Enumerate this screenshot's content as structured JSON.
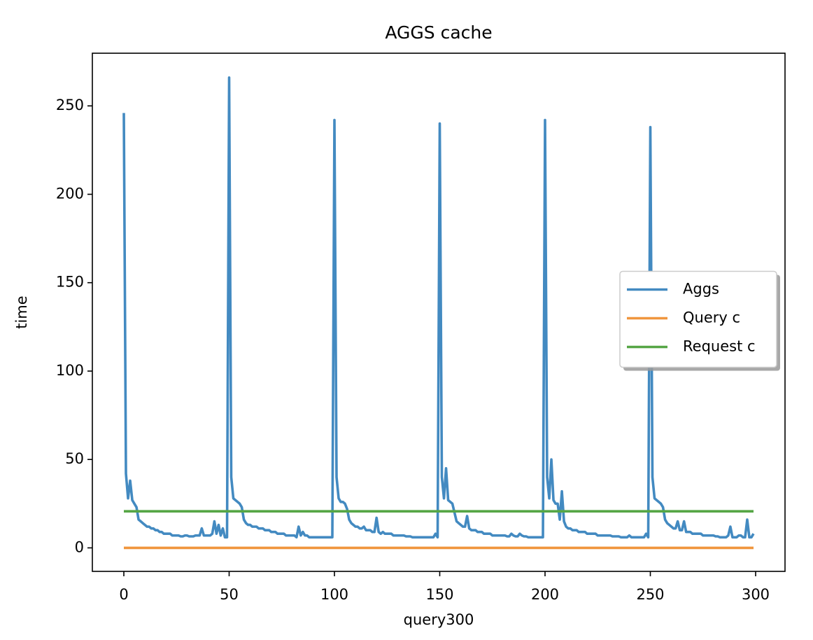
{
  "chart_data": {
    "type": "line",
    "title": "AGGS cache",
    "xlabel": "query300",
    "ylabel": "time",
    "x": [
      0,
      1,
      2,
      3,
      4,
      5,
      6,
      7,
      8,
      9,
      10,
      11,
      12,
      13,
      14,
      15,
      16,
      17,
      18,
      19,
      20,
      21,
      22,
      23,
      24,
      25,
      26,
      27,
      28,
      29,
      30,
      31,
      32,
      33,
      34,
      35,
      36,
      37,
      38,
      39,
      40,
      41,
      42,
      43,
      44,
      45,
      46,
      47,
      48,
      49,
      50,
      51,
      52,
      53,
      54,
      55,
      56,
      57,
      58,
      59,
      60,
      61,
      62,
      63,
      64,
      65,
      66,
      67,
      68,
      69,
      70,
      71,
      72,
      73,
      74,
      75,
      76,
      77,
      78,
      79,
      80,
      81,
      82,
      83,
      84,
      85,
      86,
      87,
      88,
      89,
      90,
      91,
      92,
      93,
      94,
      95,
      96,
      97,
      98,
      99,
      100,
      101,
      102,
      103,
      104,
      105,
      106,
      107,
      108,
      109,
      110,
      111,
      112,
      113,
      114,
      115,
      116,
      117,
      118,
      119,
      120,
      121,
      122,
      123,
      124,
      125,
      126,
      127,
      128,
      129,
      130,
      131,
      132,
      133,
      134,
      135,
      136,
      137,
      138,
      139,
      140,
      141,
      142,
      143,
      144,
      145,
      146,
      147,
      148,
      149,
      150,
      151,
      152,
      153,
      154,
      155,
      156,
      157,
      158,
      159,
      160,
      161,
      162,
      163,
      164,
      165,
      166,
      167,
      168,
      169,
      170,
      171,
      172,
      173,
      174,
      175,
      176,
      177,
      178,
      179,
      180,
      181,
      182,
      183,
      184,
      185,
      186,
      187,
      188,
      189,
      190,
      191,
      192,
      193,
      194,
      195,
      196,
      197,
      198,
      199,
      200,
      201,
      202,
      203,
      204,
      205,
      206,
      207,
      208,
      209,
      210,
      211,
      212,
      213,
      214,
      215,
      216,
      217,
      218,
      219,
      220,
      221,
      222,
      223,
      224,
      225,
      226,
      227,
      228,
      229,
      230,
      231,
      232,
      233,
      234,
      235,
      236,
      237,
      238,
      239,
      240,
      241,
      242,
      243,
      244,
      245,
      246,
      247,
      248,
      249,
      250,
      251,
      252,
      253,
      254,
      255,
      256,
      257,
      258,
      259,
      260,
      261,
      262,
      263,
      264,
      265,
      266,
      267,
      268,
      269,
      270,
      271,
      272,
      273,
      274,
      275,
      276,
      277,
      278,
      279,
      280,
      281,
      282,
      283,
      284,
      285,
      286,
      287,
      288,
      289,
      290,
      291,
      292,
      293,
      294,
      295,
      296,
      297,
      298,
      299
    ],
    "series": [
      {
        "name": "Aggs",
        "color": "#438ac1",
        "values": [
          246,
          42,
          28,
          38,
          27,
          25,
          23,
          16,
          15,
          14,
          13,
          12,
          12,
          11,
          11,
          10,
          10,
          9,
          9,
          8,
          8,
          8,
          8,
          7,
          7,
          7,
          7,
          6.5,
          6.5,
          7,
          7,
          6.5,
          6.5,
          6.5,
          7,
          7,
          7,
          11,
          7,
          7,
          7,
          7,
          8,
          15,
          8,
          13,
          7,
          11,
          6,
          6,
          266,
          40,
          28,
          27,
          26,
          25,
          23,
          16,
          14,
          13,
          13,
          12,
          12,
          12,
          11,
          11,
          11,
          10,
          10,
          10,
          9,
          9,
          9,
          8,
          8,
          8,
          8,
          7,
          7,
          7,
          7,
          7,
          6,
          12,
          7,
          9,
          7,
          7,
          6,
          6,
          6,
          6,
          6,
          6,
          6,
          6,
          6,
          6,
          6,
          6,
          242,
          40,
          28,
          26,
          26,
          25,
          22,
          16,
          14,
          13,
          12,
          12,
          11,
          11,
          12,
          10,
          10,
          10,
          9,
          9,
          17,
          9,
          8,
          9,
          8,
          8,
          8,
          8,
          7,
          7,
          7,
          7,
          7,
          7,
          6.5,
          6.5,
          6.5,
          6,
          6,
          6,
          6,
          6,
          6,
          6,
          6,
          6,
          6,
          6,
          8,
          6,
          240,
          40,
          28,
          45,
          27,
          26,
          25,
          20,
          15,
          14,
          13,
          12,
          12,
          18,
          11,
          10,
          10,
          10,
          9,
          9,
          9,
          8,
          8,
          8,
          8,
          7,
          7,
          7,
          7,
          7,
          7,
          7,
          6.5,
          6.5,
          8,
          7,
          6.5,
          6.5,
          8,
          7,
          6.5,
          6.5,
          6,
          6,
          6,
          6,
          6,
          6,
          6,
          6,
          242,
          40,
          28,
          50,
          27,
          25,
          25,
          16,
          32,
          15,
          12,
          11,
          11,
          10,
          10,
          10,
          9,
          9,
          9,
          9,
          8,
          8,
          8,
          8,
          8,
          7,
          7,
          7,
          7,
          7,
          7,
          7,
          6.5,
          6.5,
          6.5,
          6.5,
          6,
          6,
          6,
          6,
          7,
          6,
          6,
          6,
          6,
          6,
          6,
          6,
          8,
          6,
          238,
          40,
          28,
          27,
          26,
          25,
          23,
          16,
          14,
          13,
          12,
          11,
          11,
          15,
          10,
          10,
          15,
          9,
          9,
          9,
          8,
          8,
          8,
          8,
          8,
          7,
          7,
          7,
          7,
          7,
          7,
          6.5,
          6.5,
          6,
          6,
          6,
          6,
          7,
          12,
          6,
          6,
          6,
          7,
          7,
          6,
          6,
          16,
          6,
          6,
          8
        ]
      },
      {
        "name": "Query c",
        "color": "#f0963e",
        "values": [
          0,
          0,
          0,
          0,
          0,
          0,
          0,
          0,
          0,
          0,
          0,
          0,
          0,
          0,
          0,
          0,
          0,
          0,
          0,
          0,
          0,
          0,
          0,
          0,
          0,
          0,
          0,
          0,
          0,
          0,
          0,
          0,
          0,
          0,
          0,
          0,
          0,
          0,
          0,
          0,
          0,
          0,
          0,
          0,
          0,
          0,
          0,
          0,
          0,
          0,
          0,
          0,
          0,
          0,
          0,
          0,
          0,
          0,
          0,
          0,
          0,
          0,
          0,
          0,
          0,
          0,
          0,
          0,
          0,
          0,
          0,
          0,
          0,
          0,
          0,
          0,
          0,
          0,
          0,
          0,
          0,
          0,
          0,
          0,
          0,
          0,
          0,
          0,
          0,
          0,
          0,
          0,
          0,
          0,
          0,
          0,
          0,
          0,
          0,
          0,
          0,
          0,
          0,
          0,
          0,
          0,
          0,
          0,
          0,
          0,
          0,
          0,
          0,
          0,
          0,
          0,
          0,
          0,
          0,
          0,
          0,
          0,
          0,
          0,
          0,
          0,
          0,
          0,
          0,
          0,
          0,
          0,
          0,
          0,
          0,
          0,
          0,
          0,
          0,
          0,
          0,
          0,
          0,
          0,
          0,
          0,
          0,
          0,
          0,
          0,
          0,
          0,
          0,
          0,
          0,
          0,
          0,
          0,
          0,
          0,
          0,
          0,
          0,
          0,
          0,
          0,
          0,
          0,
          0,
          0,
          0,
          0,
          0,
          0,
          0,
          0,
          0,
          0,
          0,
          0,
          0,
          0,
          0,
          0,
          0,
          0,
          0,
          0,
          0,
          0,
          0,
          0,
          0,
          0,
          0,
          0,
          0,
          0,
          0,
          0,
          0,
          0,
          0,
          0,
          0,
          0,
          0,
          0,
          0,
          0,
          0,
          0,
          0,
          0,
          0,
          0,
          0,
          0,
          0,
          0,
          0,
          0,
          0,
          0,
          0,
          0,
          0,
          0,
          0,
          0,
          0,
          0,
          0,
          0,
          0,
          0,
          0,
          0,
          0,
          0,
          0,
          0,
          0,
          0,
          0,
          0,
          0,
          0,
          0,
          0,
          0,
          0,
          0,
          0,
          0,
          0,
          0,
          0,
          0,
          0,
          0,
          0,
          0,
          0,
          0,
          0,
          0,
          0,
          0,
          0,
          0,
          0,
          0,
          0,
          0,
          0,
          0,
          0,
          0,
          0,
          0,
          0,
          0,
          0,
          0,
          0,
          0,
          0,
          0,
          0,
          0,
          0,
          0,
          0,
          0,
          0,
          0,
          0,
          0,
          0
        ]
      },
      {
        "name": "Request c",
        "color": "#56a646",
        "values": [
          20.7,
          20.7,
          20.7,
          20.7,
          20.7,
          20.7,
          20.7,
          20.7,
          20.7,
          20.7,
          20.7,
          20.7,
          20.7,
          20.7,
          20.7,
          20.7,
          20.7,
          20.7,
          20.7,
          20.7,
          20.7,
          20.7,
          20.7,
          20.7,
          20.7,
          20.7,
          20.7,
          20.7,
          20.7,
          20.7,
          20.7,
          20.7,
          20.7,
          20.7,
          20.7,
          20.7,
          20.7,
          20.7,
          20.7,
          20.7,
          20.7,
          20.7,
          20.7,
          20.7,
          20.7,
          20.7,
          20.7,
          20.7,
          20.7,
          20.7,
          20.7,
          20.7,
          20.7,
          20.7,
          20.7,
          20.7,
          20.7,
          20.7,
          20.7,
          20.7,
          20.7,
          20.7,
          20.7,
          20.7,
          20.7,
          20.7,
          20.7,
          20.7,
          20.7,
          20.7,
          20.7,
          20.7,
          20.7,
          20.7,
          20.7,
          20.7,
          20.7,
          20.7,
          20.7,
          20.7,
          20.7,
          20.7,
          20.7,
          20.7,
          20.7,
          20.7,
          20.7,
          20.7,
          20.7,
          20.7,
          20.7,
          20.7,
          20.7,
          20.7,
          20.7,
          20.7,
          20.7,
          20.7,
          20.7,
          20.7,
          20.7,
          20.7,
          20.7,
          20.7,
          20.7,
          20.7,
          20.7,
          20.7,
          20.7,
          20.7,
          20.7,
          20.7,
          20.7,
          20.7,
          20.7,
          20.7,
          20.7,
          20.7,
          20.7,
          20.7,
          20.7,
          20.7,
          20.7,
          20.7,
          20.7,
          20.7,
          20.7,
          20.7,
          20.7,
          20.7,
          20.7,
          20.7,
          20.7,
          20.7,
          20.7,
          20.7,
          20.7,
          20.7,
          20.7,
          20.7,
          20.7,
          20.7,
          20.7,
          20.7,
          20.7,
          20.7,
          20.7,
          20.7,
          20.7,
          20.7,
          20.7,
          20.7,
          20.7,
          20.7,
          20.7,
          20.7,
          20.7,
          20.7,
          20.7,
          20.7,
          20.7,
          20.7,
          20.7,
          20.7,
          20.7,
          20.7,
          20.7,
          20.7,
          20.7,
          20.7,
          20.7,
          20.7,
          20.7,
          20.7,
          20.7,
          20.7,
          20.7,
          20.7,
          20.7,
          20.7,
          20.7,
          20.7,
          20.7,
          20.7,
          20.7,
          20.7,
          20.7,
          20.7,
          20.7,
          20.7,
          20.7,
          20.7,
          20.7,
          20.7,
          20.7,
          20.7,
          20.7,
          20.7,
          20.7,
          20.7,
          20.7,
          20.7,
          20.7,
          20.7,
          20.7,
          20.7,
          20.7,
          20.7,
          20.7,
          20.7,
          20.7,
          20.7,
          20.7,
          20.7,
          20.7,
          20.7,
          20.7,
          20.7,
          20.7,
          20.7,
          20.7,
          20.7,
          20.7,
          20.7,
          20.7,
          20.7,
          20.7,
          20.7,
          20.7,
          20.7,
          20.7,
          20.7,
          20.7,
          20.7,
          20.7,
          20.7,
          20.7,
          20.7,
          20.7,
          20.7,
          20.7,
          20.7,
          20.7,
          20.7,
          20.7,
          20.7,
          20.7,
          20.7,
          20.7,
          20.7,
          20.7,
          20.7,
          20.7,
          20.7,
          20.7,
          20.7,
          20.7,
          20.7,
          20.7,
          20.7,
          20.7,
          20.7,
          20.7,
          20.7,
          20.7,
          20.7,
          20.7,
          20.7,
          20.7,
          20.7,
          20.7,
          20.7,
          20.7,
          20.7,
          20.7,
          20.7,
          20.7,
          20.7,
          20.7,
          20.7,
          20.7,
          20.7,
          20.7,
          20.7,
          20.7,
          20.7,
          20.7,
          20.7,
          20.7,
          20.7,
          20.7,
          20.7,
          20.7,
          20.7,
          20.7,
          20.7,
          20.7,
          20.7,
          20.7,
          20.7
        ]
      }
    ],
    "xlim": [
      -14.95,
      313.95
    ],
    "xticks": [
      0,
      50,
      100,
      150,
      200,
      250,
      300
    ],
    "ylim": [
      -13.3,
      279.8
    ],
    "yticks": [
      0,
      50,
      100,
      150,
      200,
      250
    ],
    "grid": false,
    "legend": "center right"
  }
}
